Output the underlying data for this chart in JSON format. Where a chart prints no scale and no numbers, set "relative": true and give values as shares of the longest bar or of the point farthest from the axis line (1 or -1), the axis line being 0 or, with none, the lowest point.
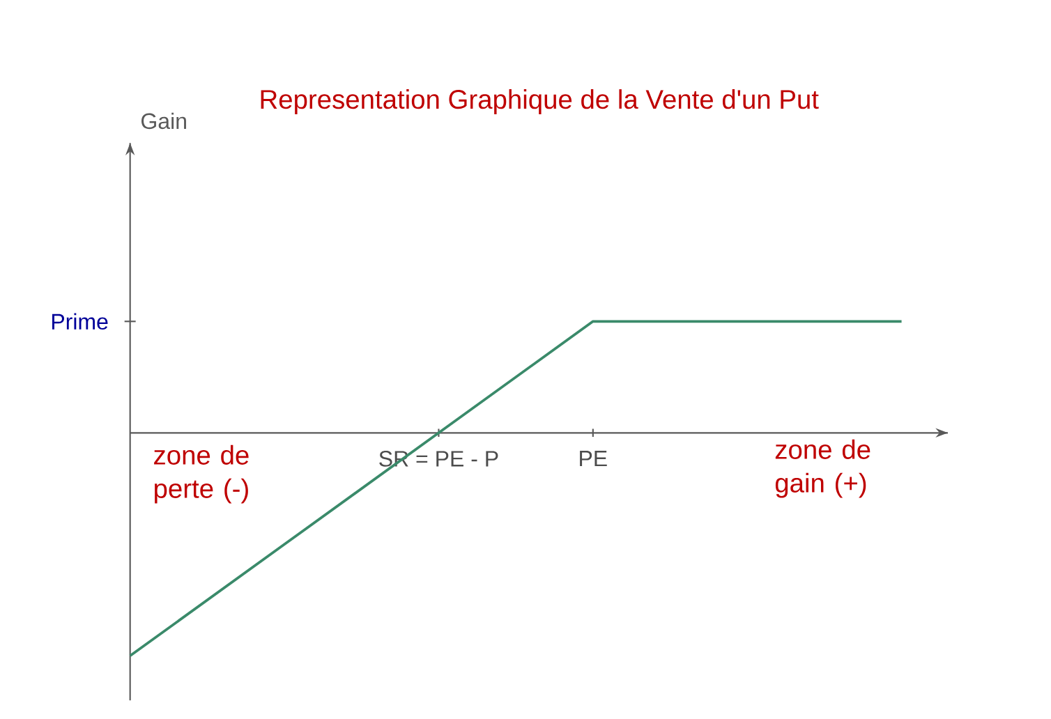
{
  "chart_data": {
    "type": "line",
    "title": "Representation Graphique de la Vente d'un Put",
    "relative": true,
    "categories": [
      null,
      null,
      "SR = PE - P",
      "PE",
      null,
      null
    ],
    "series": [
      {
        "color": "#3a8a6a",
        "values": [
          -1,
          -0.5,
          0,
          0.5,
          0.5,
          0.5
        ]
      }
    ],
    "annotations": [
      "Gain",
      "Prime",
      "zone de perte (-)",
      "zone de gain (+)"
    ],
    "marker": "none",
    "line_style": "solid"
  }
}
